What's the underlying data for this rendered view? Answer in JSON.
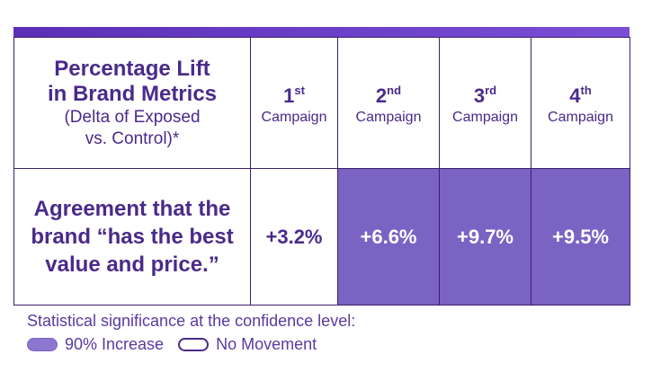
{
  "header": {
    "title_line1": "Percentage Lift",
    "title_line2": "in Brand Metrics",
    "sub_line1": "(Delta of Exposed",
    "sub_line2": "vs. Control)*"
  },
  "campaigns": [
    {
      "num": "1",
      "sup": "st",
      "word": "Campaign"
    },
    {
      "num": "2",
      "sup": "nd",
      "word": "Campaign"
    },
    {
      "num": "3",
      "sup": "rd",
      "word": "Campaign"
    },
    {
      "num": "4",
      "sup": "th",
      "word": "Campaign"
    }
  ],
  "row": {
    "metric_line1": "Agreement that the",
    "metric_line2": "brand “has the best",
    "metric_line3": "value and price.”",
    "values": [
      "+3.2%",
      "+6.6%",
      "+9.7%",
      "+9.5%"
    ]
  },
  "legend": {
    "title": "Statistical significance at the confidence level:",
    "increase_label": "90% Increase",
    "no_movement_label": "No Movement"
  },
  "chart_data": {
    "type": "table",
    "title": "Percentage Lift in Brand Metrics (Delta of Exposed vs. Control)*",
    "columns": [
      "1st Campaign",
      "2nd Campaign",
      "3rd Campaign",
      "4th Campaign"
    ],
    "rows": [
      {
        "metric": "Agreement that the brand “has the best value and price.”",
        "values": [
          3.2,
          6.6,
          9.7,
          9.5
        ],
        "significance": [
          "No Movement",
          "90% Increase",
          "90% Increase",
          "90% Increase"
        ]
      }
    ]
  },
  "colors": {
    "accent": "#5b2fb8",
    "significant_fill": "#7b63c4",
    "text": "#4a2a8a"
  }
}
